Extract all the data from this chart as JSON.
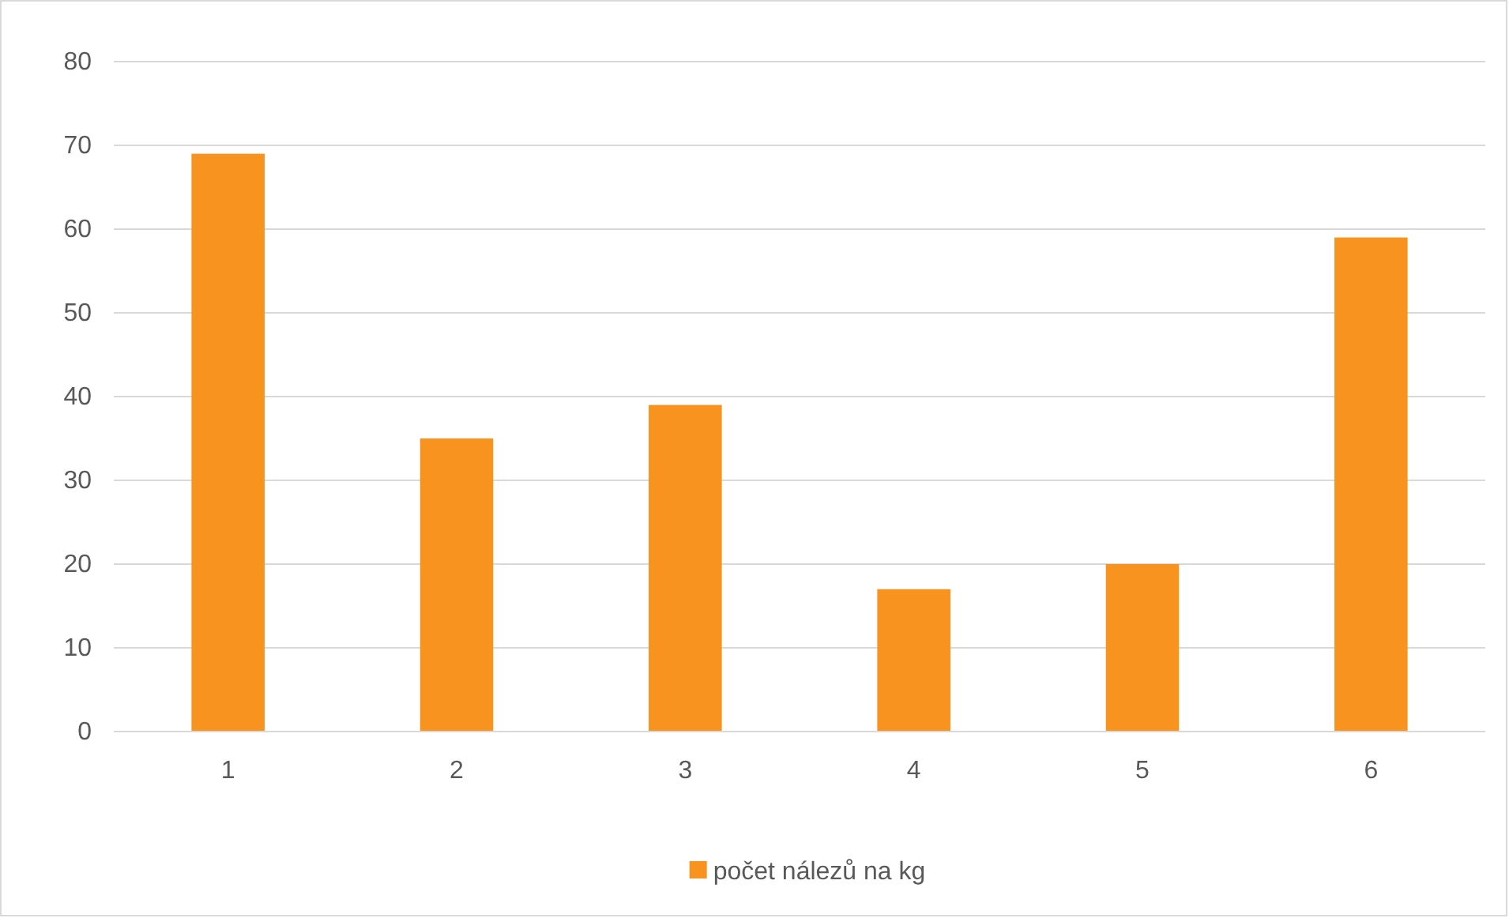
{
  "chart_data": {
    "type": "bar",
    "categories": [
      "1",
      "2",
      "3",
      "4",
      "5",
      "6"
    ],
    "series": [
      {
        "name": "počet nálezů na kg",
        "color": "#f7931e",
        "values": [
          69,
          35,
          39,
          17,
          20,
          59
        ]
      }
    ],
    "ylim": [
      0,
      80
    ],
    "yticks": [
      0,
      10,
      20,
      30,
      40,
      50,
      60,
      70,
      80
    ],
    "grid": "y",
    "legend": "bottom"
  }
}
